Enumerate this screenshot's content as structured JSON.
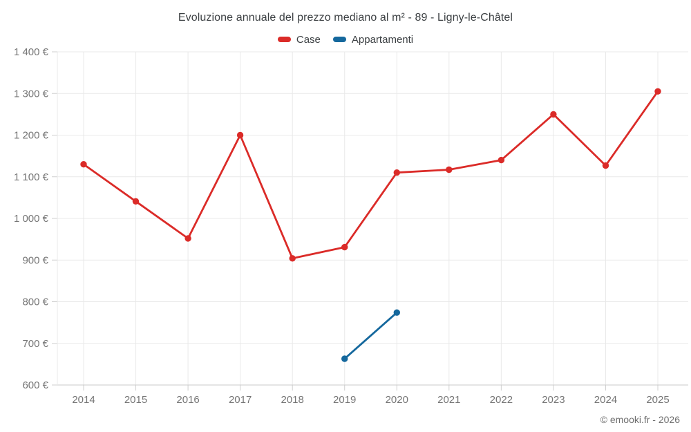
{
  "chart_data": {
    "type": "line",
    "title": "Evoluzione annuale del prezzo mediano al m² - 89 - Ligny-le-Châtel",
    "categories": [
      "2014",
      "2015",
      "2016",
      "2017",
      "2018",
      "2019",
      "2020",
      "2021",
      "2022",
      "2023",
      "2024",
      "2025"
    ],
    "series": [
      {
        "name": "Case",
        "color": "#db2b28",
        "values": [
          1130,
          1041,
          952,
          1200,
          904,
          931,
          1110,
          1117,
          1140,
          1250,
          1127,
          1305
        ]
      },
      {
        "name": "Appartamenti",
        "color": "#15689d",
        "values": [
          null,
          null,
          null,
          null,
          null,
          663,
          774,
          null,
          null,
          null,
          null,
          null
        ]
      }
    ],
    "ylim": [
      600,
      1400
    ],
    "ytick_step": 100,
    "ytick_labels": [
      "600 €",
      "700 €",
      "800 €",
      "900 €",
      "1 000 €",
      "1 100 €",
      "1 200 €",
      "1 300 €",
      "1 400 €"
    ],
    "grid": true,
    "legend_position": "top",
    "currency": "€"
  },
  "footer": {
    "credit": "© emooki.fr - 2026"
  }
}
